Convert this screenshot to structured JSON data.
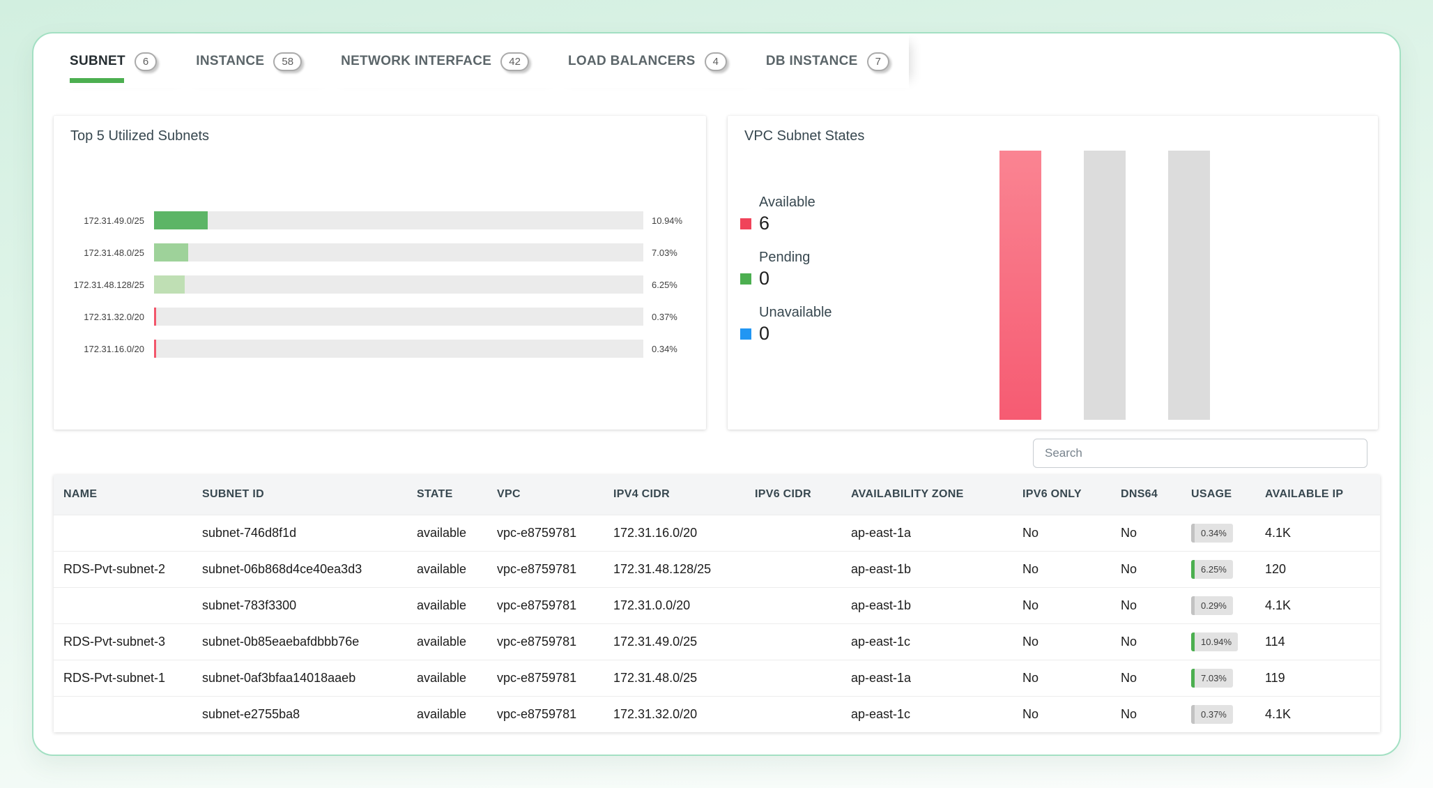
{
  "tabs": [
    {
      "label": "SUBNET",
      "count": "6",
      "active": true
    },
    {
      "label": "INSTANCE",
      "count": "58",
      "active": false
    },
    {
      "label": "NETWORK INTERFACE",
      "count": "42",
      "active": false
    },
    {
      "label": "LOAD BALANCERS",
      "count": "4",
      "active": false
    },
    {
      "label": "DB INSTANCE",
      "count": "7",
      "active": false
    }
  ],
  "colors": {
    "tab_underline": "#4caf50",
    "available_red": "#f0435a",
    "pending_green": "#4caf50",
    "unavailable_blue": "#2196f3",
    "placeholder_gray_bar": "#dcdcdc",
    "usage_green": "#4caf50",
    "usage_gray": "#c2c2c2"
  },
  "chart_data": [
    {
      "type": "bar",
      "orientation": "horizontal",
      "title": "Top 5 Utilized Subnets",
      "categories": [
        "172.31.49.0/25",
        "172.31.48.0/25",
        "172.31.48.128/25",
        "172.31.32.0/20",
        "172.31.16.0/20"
      ],
      "values": [
        10.94,
        7.03,
        6.25,
        0.37,
        0.34
      ],
      "value_labels": [
        "10.94%",
        "7.03%",
        "6.25%",
        "0.37%",
        "0.34%"
      ],
      "xlim": [
        0,
        100
      ],
      "grid": false,
      "bar_colors": [
        "#5cb566",
        "#9ed29a",
        "#bfdfb4",
        "#f2566b",
        "#f2566b"
      ],
      "track_color": "#ebebeb"
    },
    {
      "type": "bar",
      "orientation": "vertical",
      "title": "VPC Subnet States",
      "categories": [
        "Available",
        "Pending",
        "Unavailable"
      ],
      "values": [
        6,
        0,
        0
      ],
      "legend_position": "left",
      "legend": [
        {
          "label": "Available",
          "value": "6",
          "color": "#f0435a"
        },
        {
          "label": "Pending",
          "value": "0",
          "color": "#4caf50"
        },
        {
          "label": "Unavailable",
          "value": "0",
          "color": "#2196f3"
        }
      ],
      "bar_styles": [
        {
          "type": "gradient",
          "from": "#fa8492",
          "to": "#f65b72"
        },
        {
          "type": "solid",
          "color": "#dcdcdc"
        },
        {
          "type": "solid",
          "color": "#dcdcdc"
        }
      ]
    }
  ],
  "search": {
    "placeholder": "Search"
  },
  "table": {
    "columns": [
      "NAME",
      "SUBNET ID",
      "STATE",
      "VPC",
      "IPV4 CIDR",
      "IPV6 CIDR",
      "AVAILABILITY ZONE",
      "IPV6 ONLY",
      "DNS64",
      "USAGE",
      "AVAILABLE IP"
    ],
    "rows": [
      {
        "name": "",
        "subnet_id": "subnet-746d8f1d",
        "state": "available",
        "vpc": "vpc-e8759781",
        "ipv4_cidr": "172.31.16.0/20",
        "ipv6_cidr": "",
        "az": "ap-east-1a",
        "ipv6_only": "No",
        "dns64": "No",
        "usage": "0.34%",
        "usage_color": "#c2c2c2",
        "available_ip": "4.1K"
      },
      {
        "name": "RDS-Pvt-subnet-2",
        "subnet_id": "subnet-06b868d4ce40ea3d3",
        "state": "available",
        "vpc": "vpc-e8759781",
        "ipv4_cidr": "172.31.48.128/25",
        "ipv6_cidr": "",
        "az": "ap-east-1b",
        "ipv6_only": "No",
        "dns64": "No",
        "usage": "6.25%",
        "usage_color": "#4caf50",
        "available_ip": "120"
      },
      {
        "name": "",
        "subnet_id": "subnet-783f3300",
        "state": "available",
        "vpc": "vpc-e8759781",
        "ipv4_cidr": "172.31.0.0/20",
        "ipv6_cidr": "",
        "az": "ap-east-1b",
        "ipv6_only": "No",
        "dns64": "No",
        "usage": "0.29%",
        "usage_color": "#c2c2c2",
        "available_ip": "4.1K"
      },
      {
        "name": "RDS-Pvt-subnet-3",
        "subnet_id": "subnet-0b85eaebafdbbb76e",
        "state": "available",
        "vpc": "vpc-e8759781",
        "ipv4_cidr": "172.31.49.0/25",
        "ipv6_cidr": "",
        "az": "ap-east-1c",
        "ipv6_only": "No",
        "dns64": "No",
        "usage": "10.94%",
        "usage_color": "#4caf50",
        "available_ip": "114"
      },
      {
        "name": "RDS-Pvt-subnet-1",
        "subnet_id": "subnet-0af3bfaa14018aaeb",
        "state": "available",
        "vpc": "vpc-e8759781",
        "ipv4_cidr": "172.31.48.0/25",
        "ipv6_cidr": "",
        "az": "ap-east-1a",
        "ipv6_only": "No",
        "dns64": "No",
        "usage": "7.03%",
        "usage_color": "#4caf50",
        "available_ip": "119"
      },
      {
        "name": "",
        "subnet_id": "subnet-e2755ba8",
        "state": "available",
        "vpc": "vpc-e8759781",
        "ipv4_cidr": "172.31.32.0/20",
        "ipv6_cidr": "",
        "az": "ap-east-1c",
        "ipv6_only": "No",
        "dns64": "No",
        "usage": "0.37%",
        "usage_color": "#c2c2c2",
        "available_ip": "4.1K"
      }
    ]
  }
}
